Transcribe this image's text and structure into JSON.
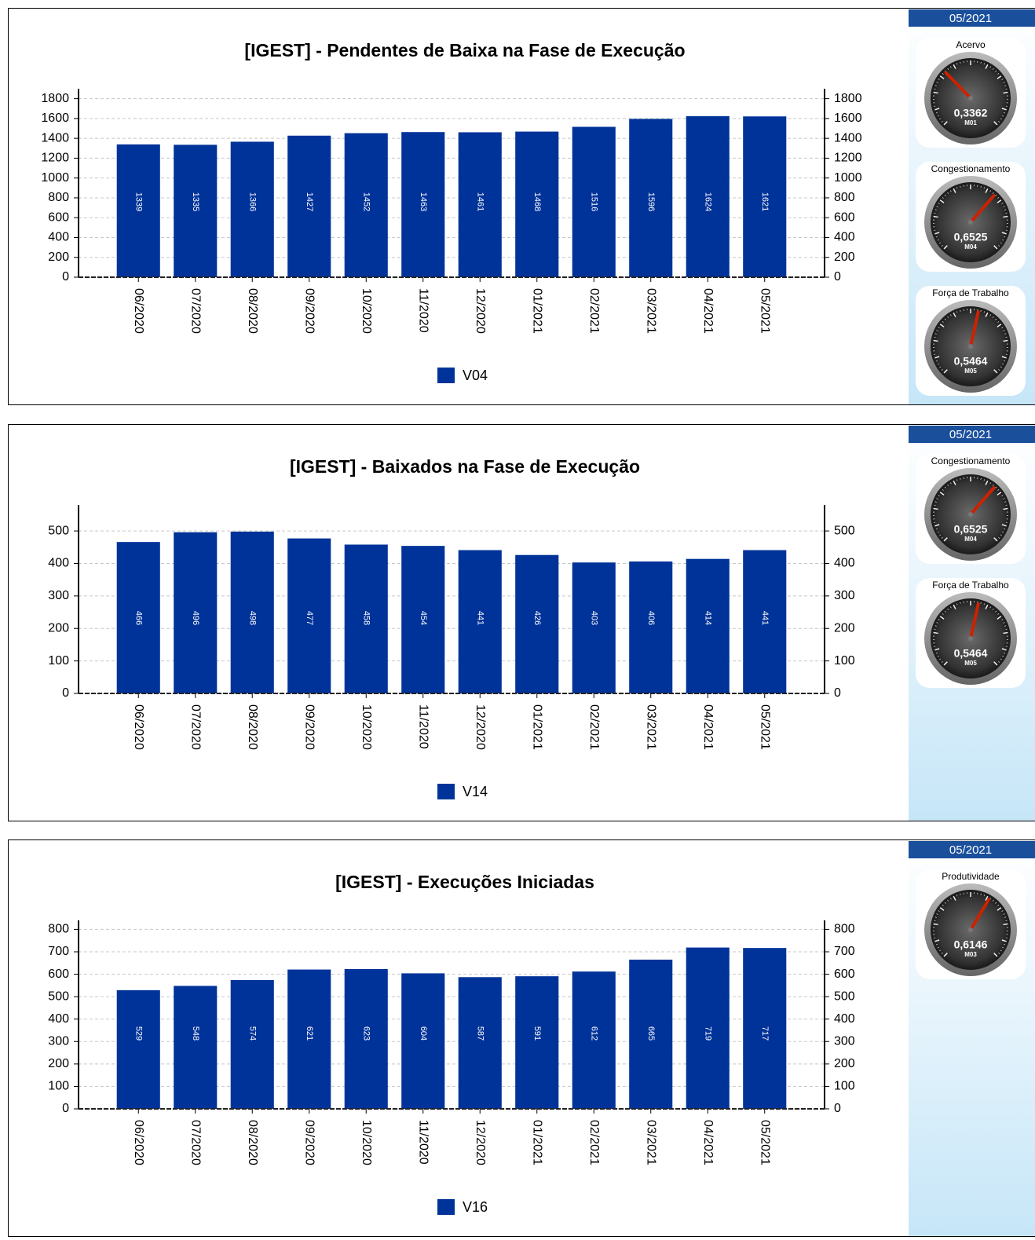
{
  "chart_data": [
    {
      "type": "bar",
      "title": "[IGEST]  - Pendentes de Baixa na Fase de Execução",
      "categories": [
        "06/2020",
        "07/2020",
        "08/2020",
        "09/2020",
        "10/2020",
        "11/2020",
        "12/2020",
        "01/2021",
        "02/2021",
        "03/2021",
        "04/2021",
        "05/2021"
      ],
      "series": [
        {
          "name": "V04",
          "color": "#003399",
          "values": [
            1339,
            1335,
            1366,
            1427,
            1452,
            1463,
            1461,
            1468,
            1516,
            1596,
            1624,
            1621
          ]
        }
      ],
      "ylim": [
        0,
        1900
      ],
      "yticks": [
        0,
        200,
        400,
        600,
        800,
        1000,
        1200,
        1400,
        1600,
        1800
      ],
      "grid": true
    },
    {
      "type": "bar",
      "title": "[IGEST]  - Baixados na Fase de Execução",
      "categories": [
        "06/2020",
        "07/2020",
        "08/2020",
        "09/2020",
        "10/2020",
        "11/2020",
        "12/2020",
        "01/2021",
        "02/2021",
        "03/2021",
        "04/2021",
        "05/2021"
      ],
      "series": [
        {
          "name": "V14",
          "color": "#003399",
          "values": [
            466,
            496,
            498,
            477,
            458,
            454,
            441,
            426,
            403,
            406,
            414,
            441
          ]
        }
      ],
      "ylim": [
        0,
        580
      ],
      "yticks": [
        0,
        100,
        200,
        300,
        400,
        500
      ],
      "grid": true
    },
    {
      "type": "bar",
      "title": "[IGEST]  - Execuções Iniciadas",
      "categories": [
        "06/2020",
        "07/2020",
        "08/2020",
        "09/2020",
        "10/2020",
        "11/2020",
        "12/2020",
        "01/2021",
        "02/2021",
        "03/2021",
        "04/2021",
        "05/2021"
      ],
      "series": [
        {
          "name": "V16",
          "color": "#003399",
          "values": [
            529,
            548,
            574,
            621,
            623,
            604,
            587,
            591,
            612,
            665,
            719,
            717
          ]
        }
      ],
      "ylim": [
        0,
        840
      ],
      "yticks": [
        0,
        100,
        200,
        300,
        400,
        500,
        600,
        700,
        800
      ],
      "grid": true
    }
  ],
  "sidebars": [
    {
      "date": "05/2021",
      "gauge_lim": [
        0,
        1
      ],
      "gauges": [
        {
          "title": "Acervo",
          "value": 0.3362,
          "value_label": "0,3362",
          "code": "M01"
        },
        {
          "title": "Congestionamento",
          "value": 0.6525,
          "value_label": "0,6525",
          "code": "M04"
        },
        {
          "title": "Força de Trabalho",
          "value": 0.5464,
          "value_label": "0,5464",
          "code": "M05"
        }
      ]
    },
    {
      "date": "05/2021",
      "gauge_lim": [
        0,
        1
      ],
      "gauges": [
        {
          "title": "Congestionamento",
          "value": 0.6525,
          "value_label": "0,6525",
          "code": "M04"
        },
        {
          "title": "Força de Trabalho",
          "value": 0.5464,
          "value_label": "0,5464",
          "code": "M05"
        }
      ]
    },
    {
      "date": "05/2021",
      "gauge_lim": [
        0,
        1
      ],
      "gauges": [
        {
          "title": "Produtividade",
          "value": 0.6146,
          "value_label": "0,6146",
          "code": "M03"
        }
      ]
    }
  ]
}
